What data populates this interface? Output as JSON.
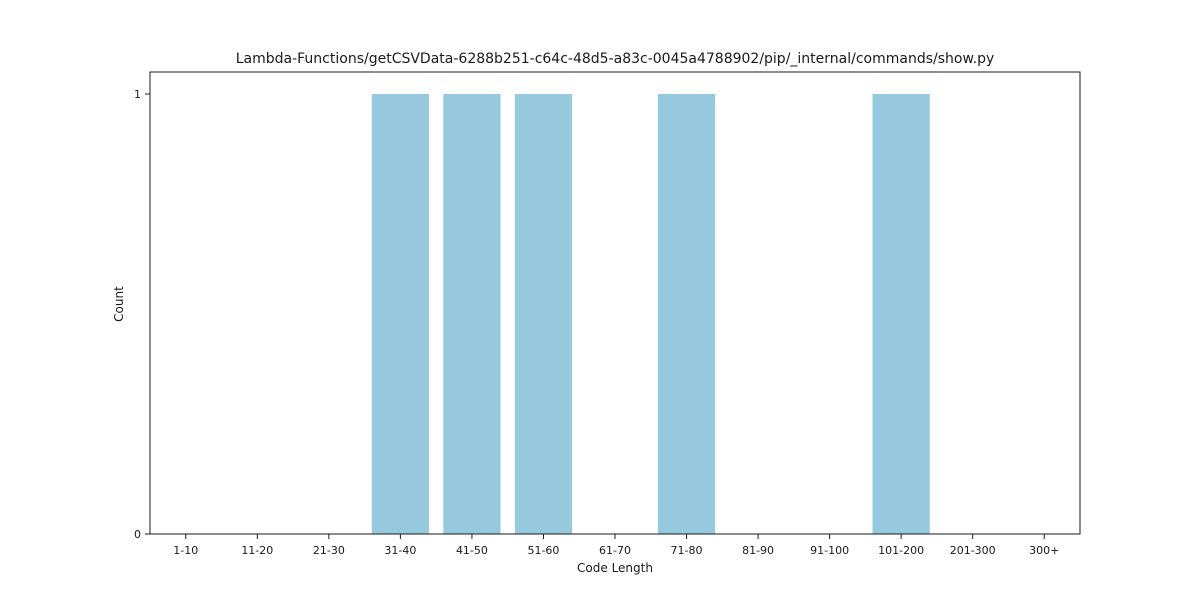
{
  "chart_data": {
    "type": "bar",
    "title": "Lambda-Functions/getCSVData-6288b251-c64c-48d5-a83c-0045a4788902/pip/_internal/commands/show.py",
    "xlabel": "Code Length",
    "ylabel": "Count",
    "categories": [
      "1-10",
      "11-20",
      "21-30",
      "31-40",
      "41-50",
      "51-60",
      "61-70",
      "71-80",
      "81-90",
      "91-100",
      "101-200",
      "201-300",
      "300+"
    ],
    "values": [
      0,
      0,
      0,
      1,
      1,
      1,
      0,
      1,
      0,
      0,
      1,
      0,
      0
    ],
    "ylim": [
      0,
      1
    ],
    "yticks": [
      0,
      1
    ],
    "bar_color": "#96c9de",
    "grid": false,
    "legend": "none"
  }
}
